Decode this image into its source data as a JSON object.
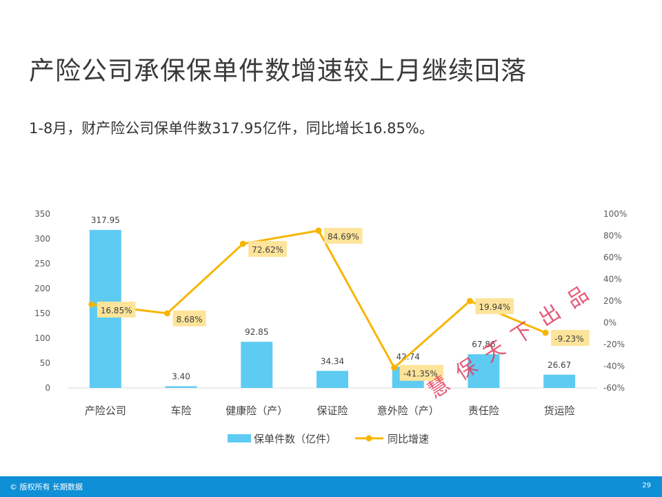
{
  "title": "产险公司承保保单件数增速较上月继续回落",
  "subtitle": "1-8月，财产险公司保单件数317.95亿件，同比增长16.85%。",
  "chart_data": {
    "type": "bar+line",
    "categories": [
      "产险公司",
      "车险",
      "健康险（产）",
      "保证险",
      "意外险（产）",
      "责任险",
      "货运险"
    ],
    "series": [
      {
        "name": "保单件数（亿件）",
        "type": "bar",
        "axis": "left",
        "values": [
          317.95,
          3.4,
          92.85,
          34.34,
          42.74,
          67.86,
          26.67
        ],
        "labels": [
          "317.95",
          "3.40",
          "92.85",
          "34.34",
          "42.74",
          "67.86",
          "26.67"
        ]
      },
      {
        "name": "同比增速",
        "type": "line",
        "axis": "right",
        "values": [
          16.85,
          8.68,
          72.62,
          84.69,
          -41.35,
          19.94,
          -9.23
        ],
        "labels": [
          "16.85%",
          "8.68%",
          "72.62%",
          "84.69%",
          "-41.35%",
          "19.94%",
          "-9.23%"
        ]
      }
    ],
    "y_left": {
      "range": [
        0,
        350
      ],
      "ticks": [
        "0",
        "50",
        "100",
        "150",
        "200",
        "250",
        "300",
        "350"
      ]
    },
    "y_right": {
      "range": [
        -60,
        100
      ],
      "ticks": [
        "-60%",
        "-40%",
        "-20%",
        "0%",
        "20%",
        "40%",
        "60%",
        "80%",
        "100%"
      ]
    },
    "legend": [
      "保单件数（亿件）",
      "同比增速"
    ],
    "legend_position": "bottom",
    "colors": {
      "bar": "#5ecbf2",
      "line": "#f7b500",
      "label_bg": "#fde49a"
    }
  },
  "footer": {
    "left": "© 版权所有 长期数据",
    "page": "29"
  },
  "watermark": "慧保天下出品"
}
